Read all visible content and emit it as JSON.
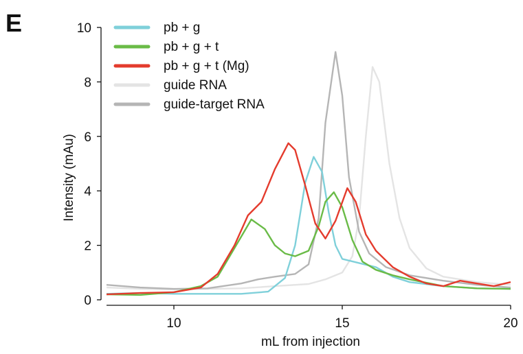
{
  "panel_label": "E",
  "chart_data": {
    "type": "line",
    "xlabel": "mL from injection",
    "ylabel": "Intensity (mAu)",
    "xlim": [
      8,
      20
    ],
    "ylim": [
      0,
      10
    ],
    "xticks": [
      10,
      15,
      20
    ],
    "yticks": [
      0,
      2,
      4,
      6,
      8,
      10
    ],
    "grid": false,
    "legend": "top-left",
    "series": [
      {
        "name": "guide RNA",
        "color": "#e4e4e4",
        "points": [
          [
            8,
            0.45
          ],
          [
            9,
            0.4
          ],
          [
            10,
            0.38
          ],
          [
            11,
            0.4
          ],
          [
            12,
            0.42
          ],
          [
            13,
            0.5
          ],
          [
            14,
            0.58
          ],
          [
            14.5,
            0.75
          ],
          [
            15,
            1.0
          ],
          [
            15.3,
            1.6
          ],
          [
            15.5,
            3.0
          ],
          [
            15.7,
            6.0
          ],
          [
            15.9,
            8.55
          ],
          [
            16.1,
            8.0
          ],
          [
            16.4,
            5.0
          ],
          [
            16.7,
            3.0
          ],
          [
            17.0,
            1.9
          ],
          [
            17.5,
            1.15
          ],
          [
            18,
            0.85
          ],
          [
            19,
            0.65
          ],
          [
            20,
            0.55
          ]
        ]
      },
      {
        "name": "guide-target RNA",
        "color": "#b5b5b5",
        "points": [
          [
            8,
            0.55
          ],
          [
            9,
            0.45
          ],
          [
            10,
            0.4
          ],
          [
            11,
            0.42
          ],
          [
            12,
            0.6
          ],
          [
            12.5,
            0.75
          ],
          [
            13,
            0.85
          ],
          [
            13.6,
            0.95
          ],
          [
            14.0,
            1.3
          ],
          [
            14.3,
            3.0
          ],
          [
            14.5,
            6.5
          ],
          [
            14.8,
            9.1
          ],
          [
            15.0,
            7.5
          ],
          [
            15.2,
            4.5
          ],
          [
            15.5,
            2.5
          ],
          [
            15.8,
            1.7
          ],
          [
            16.3,
            1.2
          ],
          [
            17,
            0.9
          ],
          [
            18,
            0.7
          ],
          [
            19,
            0.55
          ],
          [
            20,
            0.45
          ]
        ]
      },
      {
        "name": "pb + g",
        "color": "#7fd0da",
        "points": [
          [
            8,
            0.22
          ],
          [
            9,
            0.25
          ],
          [
            10,
            0.22
          ],
          [
            11,
            0.22
          ],
          [
            12,
            0.22
          ],
          [
            12.8,
            0.3
          ],
          [
            13.3,
            0.8
          ],
          [
            13.6,
            2.0
          ],
          [
            13.9,
            4.3
          ],
          [
            14.15,
            5.25
          ],
          [
            14.4,
            4.7
          ],
          [
            14.6,
            3.2
          ],
          [
            14.8,
            2.0
          ],
          [
            15.0,
            1.5
          ],
          [
            15.5,
            1.35
          ],
          [
            16.0,
            1.2
          ],
          [
            16.5,
            0.85
          ],
          [
            17,
            0.65
          ],
          [
            18,
            0.5
          ],
          [
            19,
            0.42
          ],
          [
            20,
            0.4
          ]
        ]
      },
      {
        "name": "pb + g + t",
        "color": "#6abb47",
        "points": [
          [
            8,
            0.2
          ],
          [
            9,
            0.18
          ],
          [
            10,
            0.28
          ],
          [
            10.8,
            0.5
          ],
          [
            11.3,
            0.85
          ],
          [
            11.8,
            1.9
          ],
          [
            12.3,
            2.95
          ],
          [
            12.7,
            2.6
          ],
          [
            13.0,
            2.0
          ],
          [
            13.3,
            1.7
          ],
          [
            13.6,
            1.6
          ],
          [
            14.0,
            1.8
          ],
          [
            14.3,
            2.7
          ],
          [
            14.5,
            3.6
          ],
          [
            14.75,
            3.95
          ],
          [
            15.0,
            3.4
          ],
          [
            15.3,
            2.2
          ],
          [
            15.6,
            1.4
          ],
          [
            16,
            1.1
          ],
          [
            16.5,
            0.9
          ],
          [
            17,
            0.75
          ],
          [
            18,
            0.5
          ],
          [
            19,
            0.42
          ],
          [
            20,
            0.4
          ]
        ]
      },
      {
        "name": "pb + g + t (Mg)",
        "color": "#e43b2d",
        "points": [
          [
            8,
            0.2
          ],
          [
            9,
            0.25
          ],
          [
            10,
            0.28
          ],
          [
            10.8,
            0.45
          ],
          [
            11.3,
            0.95
          ],
          [
            11.8,
            2.0
          ],
          [
            12.2,
            3.1
          ],
          [
            12.6,
            3.6
          ],
          [
            13.0,
            4.8
          ],
          [
            13.4,
            5.75
          ],
          [
            13.6,
            5.5
          ],
          [
            13.9,
            4.2
          ],
          [
            14.2,
            2.8
          ],
          [
            14.5,
            2.25
          ],
          [
            14.8,
            2.9
          ],
          [
            15.15,
            4.1
          ],
          [
            15.4,
            3.6
          ],
          [
            15.7,
            2.4
          ],
          [
            16.0,
            1.8
          ],
          [
            16.5,
            1.2
          ],
          [
            17,
            0.85
          ],
          [
            17.5,
            0.6
          ],
          [
            18,
            0.5
          ],
          [
            18.5,
            0.7
          ],
          [
            19,
            0.6
          ],
          [
            19.5,
            0.5
          ],
          [
            20,
            0.65
          ]
        ]
      }
    ],
    "legend_entries": [
      {
        "label": "pb + g",
        "color": "#7fd0da"
      },
      {
        "label": "pb + g + t",
        "color": "#6abb47"
      },
      {
        "label": "pb + g + t (Mg)",
        "color": "#e43b2d"
      },
      {
        "label": "guide RNA",
        "color": "#e4e4e4"
      },
      {
        "label": "guide-target RNA",
        "color": "#b5b5b5"
      }
    ]
  }
}
